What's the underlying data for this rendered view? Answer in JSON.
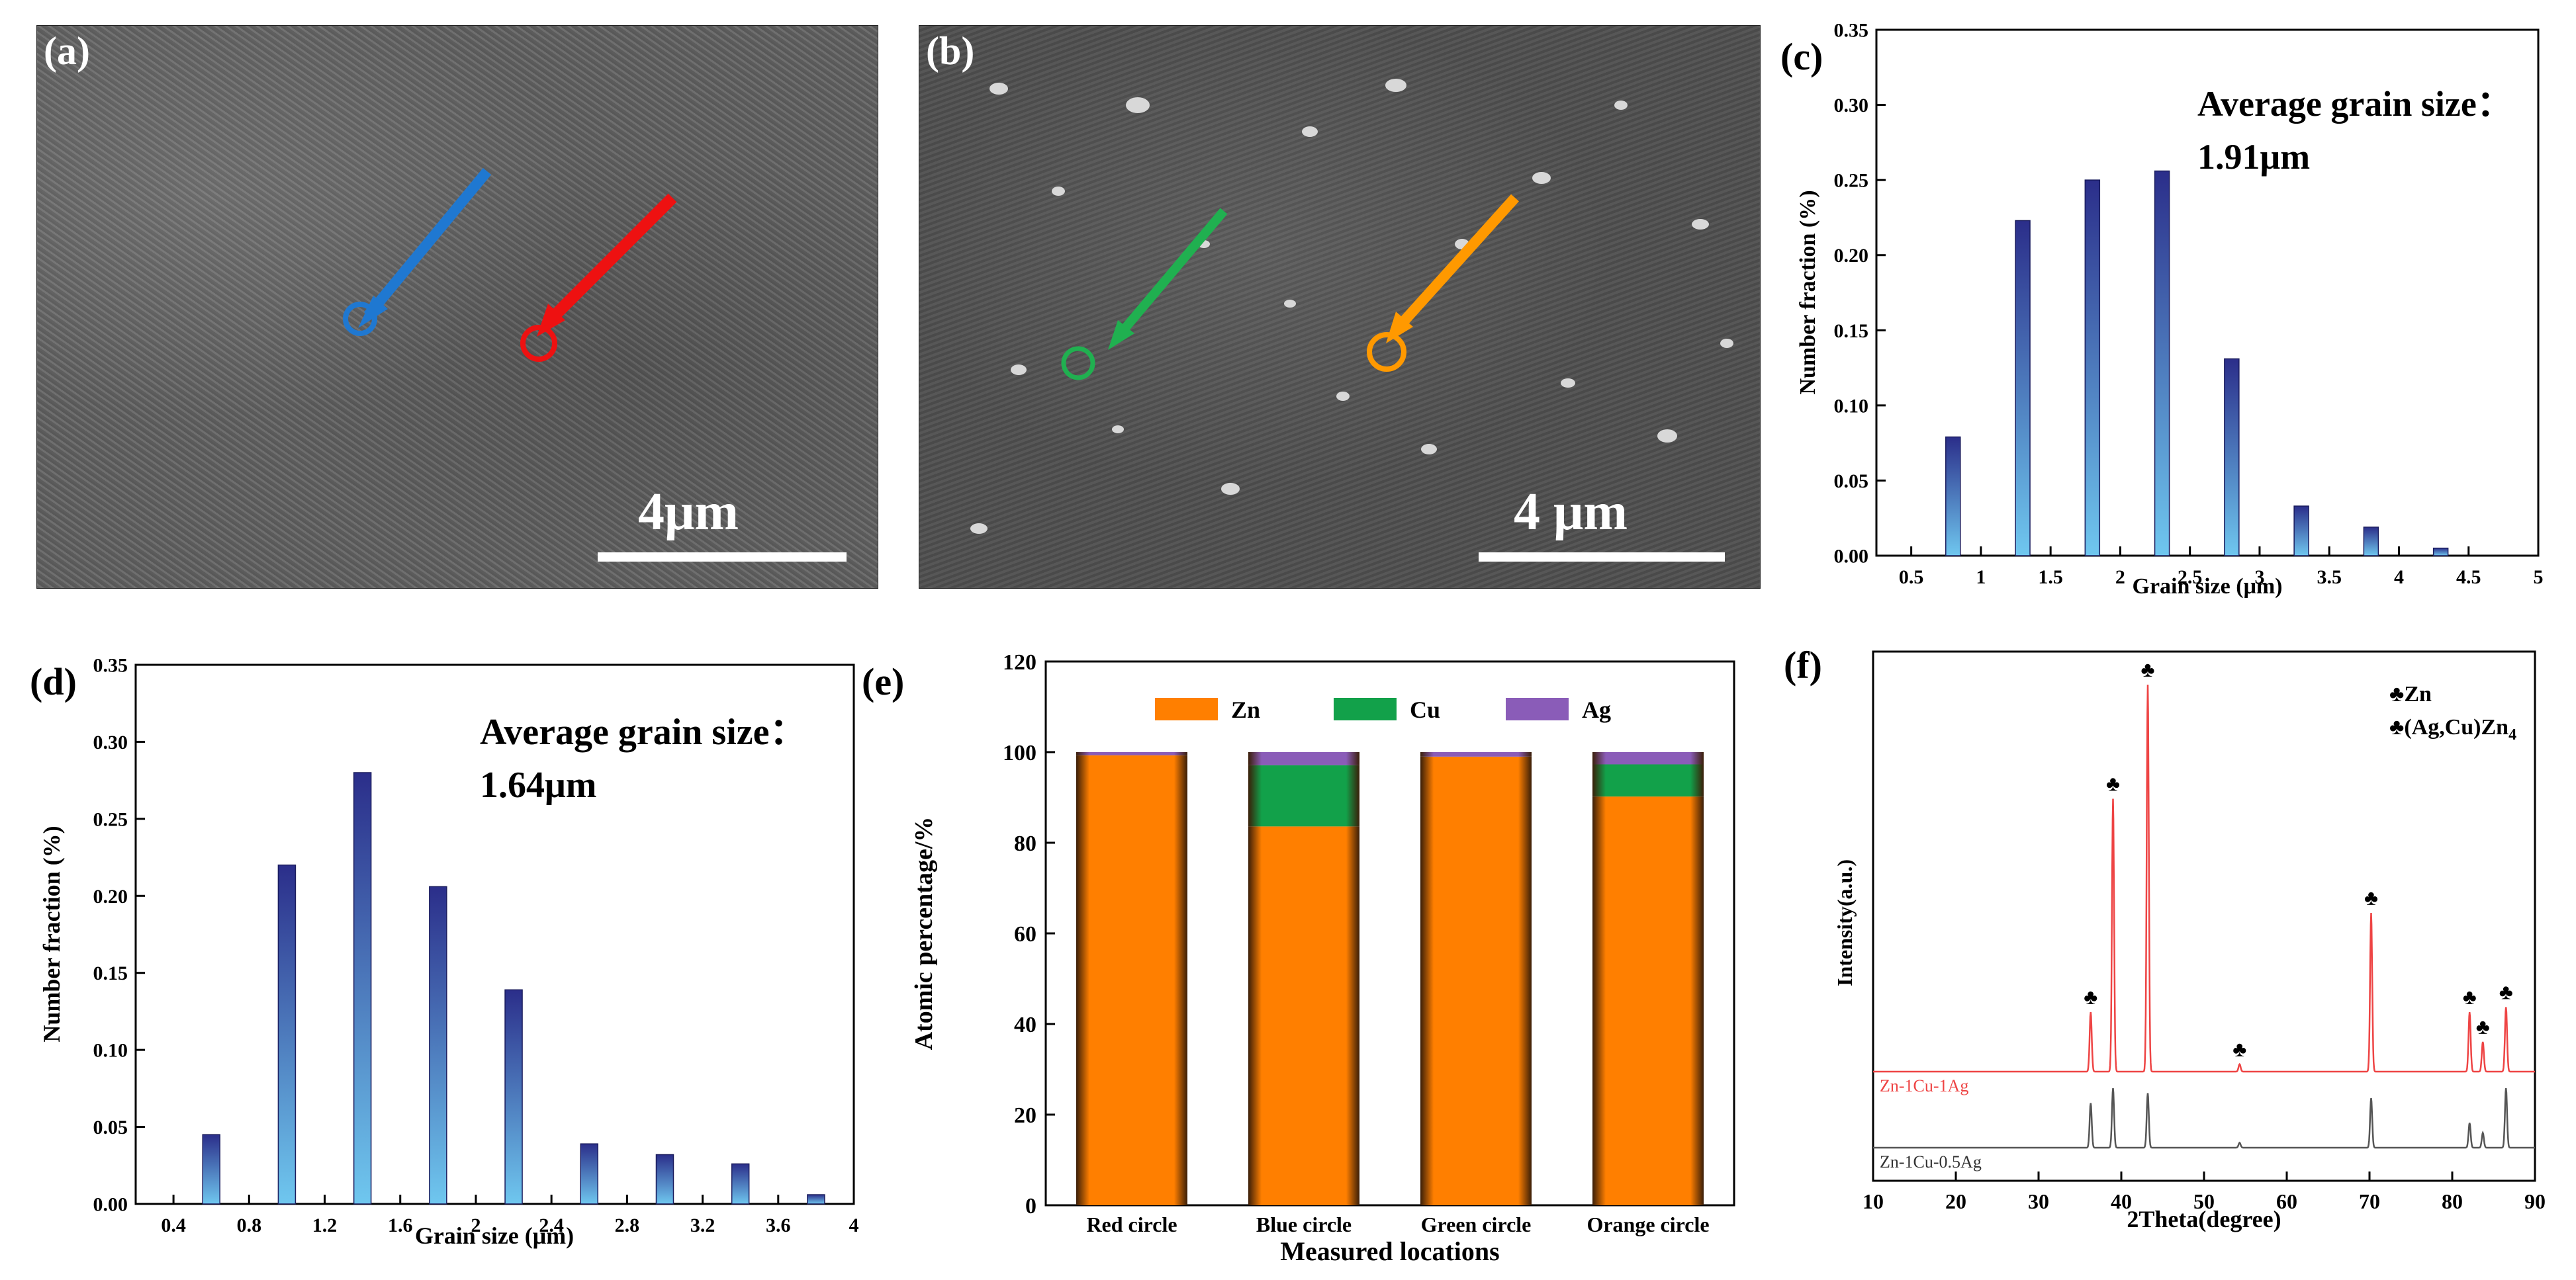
{
  "colors": {
    "arrow_blue": "#1f78d1",
    "arrow_red": "#ee1111",
    "arrow_green": "#20b050",
    "arrow_orange": "#ff9900",
    "bar_dark": "#2b2e8a",
    "bar_light": "#6fc7ef",
    "zn": "#ff7f00",
    "cu": "#12a14a",
    "ag": "#8a5cb8",
    "xrd_red": "#ee4444",
    "xrd_black": "#555555"
  },
  "panel_a": {
    "label": "(a)",
    "scale": "4μm"
  },
  "panel_b": {
    "label": "(b)",
    "scale": "4 μm"
  },
  "panel_c": {
    "label": "(c)",
    "annotation_line1": "Average grain size：",
    "annotation_line2": "1.91μm",
    "chart_data": {
      "type": "bar",
      "title": "",
      "xlabel": "Grain size (μm)",
      "ylabel": "Number fraction (%)",
      "x": [
        0.8,
        1.3,
        1.8,
        2.3,
        2.8,
        3.3,
        3.8,
        4.3
      ],
      "values": [
        0.079,
        0.223,
        0.25,
        0.256,
        0.131,
        0.033,
        0.019,
        0.005
      ],
      "xlim": [
        0.25,
        5.0
      ],
      "ylim": [
        0,
        0.35
      ],
      "xticks": [
        "0.5",
        "1",
        "1.5",
        "2",
        "2.5",
        "3",
        "3.5",
        "4",
        "4.5",
        "5"
      ],
      "yticks": [
        "0.00",
        "0.05",
        "0.10",
        "0.15",
        "0.20",
        "0.25",
        "0.30",
        "0.35"
      ]
    }
  },
  "panel_d": {
    "label": "(d)",
    "annotation_line1": "Average grain size：",
    "annotation_line2": "1.64μm",
    "chart_data": {
      "type": "bar",
      "title": "",
      "xlabel": "Grain size (μm)",
      "ylabel": "Number fraction (%)",
      "x": [
        0.6,
        1.0,
        1.4,
        1.8,
        2.2,
        2.6,
        3.0,
        3.4,
        3.8
      ],
      "values": [
        0.045,
        0.22,
        0.28,
        0.206,
        0.139,
        0.039,
        0.032,
        0.026,
        0.006
      ],
      "xlim": [
        0.2,
        4.0
      ],
      "ylim": [
        0,
        0.35
      ],
      "xticks": [
        "0.4",
        "0.8",
        "1.2",
        "1.6",
        "2",
        "2.4",
        "2.8",
        "3.2",
        "3.6",
        "4"
      ],
      "yticks": [
        "0.00",
        "0.05",
        "0.10",
        "0.15",
        "0.20",
        "0.25",
        "0.30",
        "0.35"
      ]
    }
  },
  "panel_e": {
    "label": "(e)",
    "chart_data": {
      "type": "bar",
      "stacked": true,
      "title": "",
      "xlabel": "Measured locations",
      "ylabel": "Atomic percentage/%",
      "categories": [
        "Red circle",
        "Blue circle",
        "Green circle",
        "Orange circle"
      ],
      "series": [
        {
          "name": "Zn",
          "values": [
            99.3,
            83.6,
            99.0,
            90.2
          ]
        },
        {
          "name": "Cu",
          "values": [
            0.0,
            13.5,
            0.0,
            7.1
          ]
        },
        {
          "name": "Ag",
          "values": [
            0.7,
            2.9,
            1.0,
            2.7
          ]
        }
      ],
      "ylim": [
        0,
        120
      ],
      "yticks": [
        "0",
        "20",
        "40",
        "60",
        "80",
        "100",
        "120"
      ]
    }
  },
  "panel_f": {
    "label": "(f)",
    "legend_zn": "♣Zn",
    "legend_phase_prefix": "♣(Ag,Cu)Zn",
    "legend_phase_sub": "4",
    "chart_data": {
      "type": "line",
      "title": "",
      "xlabel": "2Theta(degree)",
      "ylabel": "Intensity(a.u.)",
      "xlim": [
        10,
        90
      ],
      "xticks": [
        "10",
        "20",
        "30",
        "40",
        "50",
        "60",
        "70",
        "80",
        "90"
      ],
      "series": [
        {
          "name": "Zn-1Cu-1Ag",
          "peaks": [
            [
              36.3,
              0.12
            ],
            [
              39.0,
              0.55
            ],
            [
              43.2,
              0.78
            ],
            [
              54.3,
              0.015
            ],
            [
              70.2,
              0.32
            ],
            [
              82.1,
              0.12
            ],
            [
              83.7,
              0.06
            ],
            [
              86.5,
              0.13
            ]
          ]
        },
        {
          "name": "Zn-1Cu-0.5Ag",
          "peaks": [
            [
              36.3,
              0.09
            ],
            [
              39.0,
              0.12
            ],
            [
              43.2,
              0.11
            ],
            [
              54.3,
              0.01
            ],
            [
              70.2,
              0.1
            ],
            [
              82.1,
              0.05
            ],
            [
              83.7,
              0.03
            ],
            [
              86.5,
              0.12
            ]
          ]
        }
      ],
      "marker_symbol": "♣"
    }
  }
}
